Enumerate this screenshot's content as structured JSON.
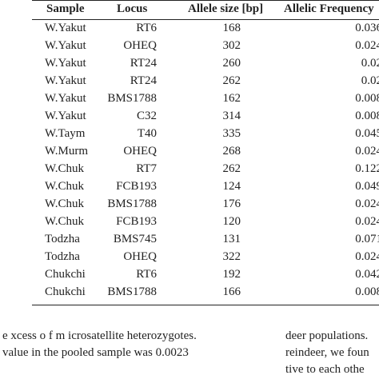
{
  "table": {
    "header": [
      "Sample",
      "Locus",
      "Allele size [bp]",
      "Allelic Frequency"
    ],
    "rows": [
      [
        "W.Yakut",
        "RT6",
        "168",
        "0.036"
      ],
      [
        "W.Yakut",
        "OHEQ",
        "302",
        "0.024"
      ],
      [
        "W.Yakut",
        "RT24",
        "260",
        "0.02"
      ],
      [
        "W.Yakut",
        "RT24",
        "262",
        "0.02"
      ],
      [
        "W.Yakut",
        "BMS1788",
        "162",
        "0.008"
      ],
      [
        "W.Yakut",
        "C32",
        "314",
        "0.008"
      ],
      [
        "W.Taym",
        "T40",
        "335",
        "0.045"
      ],
      [
        "W.Murm",
        "OHEQ",
        "268",
        "0.024"
      ],
      [
        "W.Chuk",
        "RT7",
        "262",
        "0.122"
      ],
      [
        "W.Chuk",
        "FCB193",
        "124",
        "0.049"
      ],
      [
        "W.Chuk",
        "BMS1788",
        "176",
        "0.024"
      ],
      [
        "W.Chuk",
        "FCB193",
        "120",
        "0.024"
      ],
      [
        "Todzha",
        "BMS745",
        "131",
        "0.071"
      ],
      [
        "Todzha",
        "OHEQ",
        "322",
        "0.024"
      ],
      [
        "Chukchi",
        "RT6",
        "192",
        "0.042"
      ],
      [
        "Chukchi",
        "BMS1788",
        "166",
        "0.008"
      ]
    ]
  },
  "body_text": {
    "left_lines": [
      "e xcess o f m icrosatellite heterozygotes.",
      "value in the pooled sample was 0.0023"
    ],
    "right_lines": [
      "deer populations.",
      "reindeer, we foun",
      "tive to each othe"
    ]
  }
}
